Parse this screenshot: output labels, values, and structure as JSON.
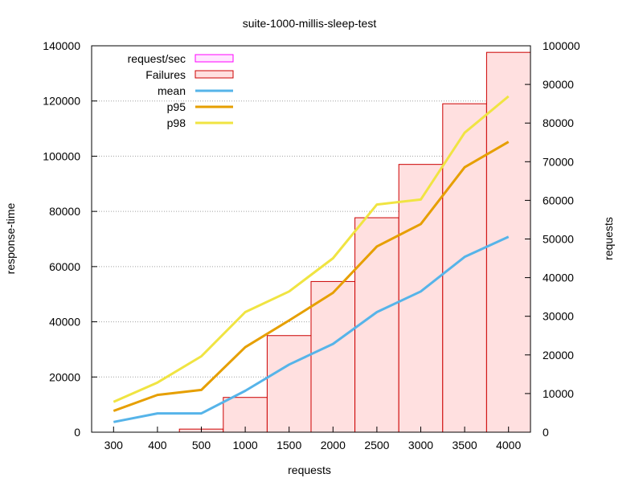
{
  "chart_data": {
    "type": "bar",
    "title": "suite-1000-millis-sleep-test",
    "xlabel": "requests",
    "ylabel": "response-time",
    "y2label": "requests",
    "categories": [
      "300",
      "400",
      "500",
      "1000",
      "1500",
      "2000",
      "2500",
      "3000",
      "3500",
      "4000"
    ],
    "ylim": [
      0,
      140000
    ],
    "y2lim": [
      0,
      100000
    ],
    "yticks": [
      0,
      20000,
      40000,
      60000,
      80000,
      100000,
      120000,
      140000
    ],
    "y2ticks": [
      0,
      10000,
      20000,
      30000,
      40000,
      50000,
      60000,
      70000,
      80000,
      90000,
      100000
    ],
    "grid": "horizontal dotted",
    "legend_position": "top-left",
    "bars": [
      {
        "name": "request/sec",
        "axis": "y2",
        "color": "#ff00ff",
        "fill": "#ffe6ff",
        "values": [
          0,
          0,
          0,
          0,
          0,
          0,
          0,
          0,
          0,
          0
        ]
      },
      {
        "name": "Failures",
        "axis": "y2",
        "color": "#cc0000",
        "fill": "#ffe0e0",
        "values": [
          0,
          0,
          800,
          9000,
          25000,
          39000,
          55500,
          69300,
          85000,
          98300
        ]
      }
    ],
    "series": [
      {
        "name": "mean",
        "color": "#56b4e9",
        "values": [
          3700,
          6800,
          6800,
          15000,
          24500,
          32000,
          43500,
          51000,
          63500,
          70800
        ]
      },
      {
        "name": "p95",
        "color": "#e69f00",
        "values": [
          7700,
          13500,
          15300,
          30800,
          40500,
          50500,
          67300,
          75400,
          96000,
          105200
        ]
      },
      {
        "name": "p98",
        "color": "#f0e442",
        "values": [
          11000,
          18000,
          27500,
          43500,
          51000,
          63000,
          82500,
          84300,
          108500,
          121700
        ]
      }
    ]
  }
}
